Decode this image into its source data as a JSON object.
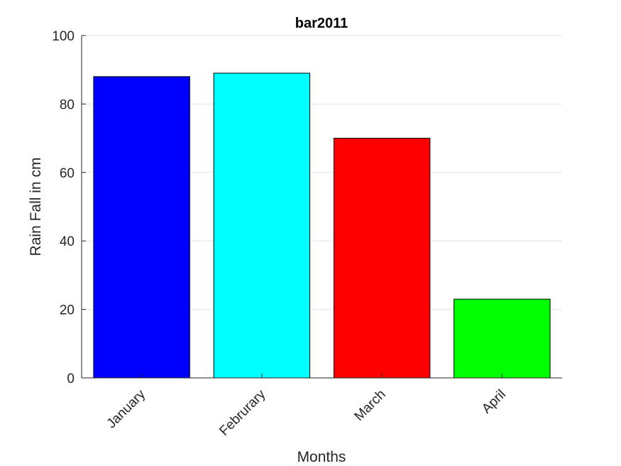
{
  "chart_data": {
    "type": "bar",
    "title": "bar2011",
    "xlabel": "Months",
    "ylabel": "Rain Fall in cm",
    "categories": [
      "January",
      "Februrary",
      "March",
      "April"
    ],
    "values": [
      88,
      89,
      70,
      23
    ],
    "bar_colors": [
      "#0000ff",
      "#00ffff",
      "#ff0000",
      "#00ff00"
    ],
    "ylim": [
      0,
      100
    ],
    "yticks": [
      0,
      20,
      40,
      60,
      80,
      100
    ],
    "grid": true,
    "legend": "none"
  }
}
